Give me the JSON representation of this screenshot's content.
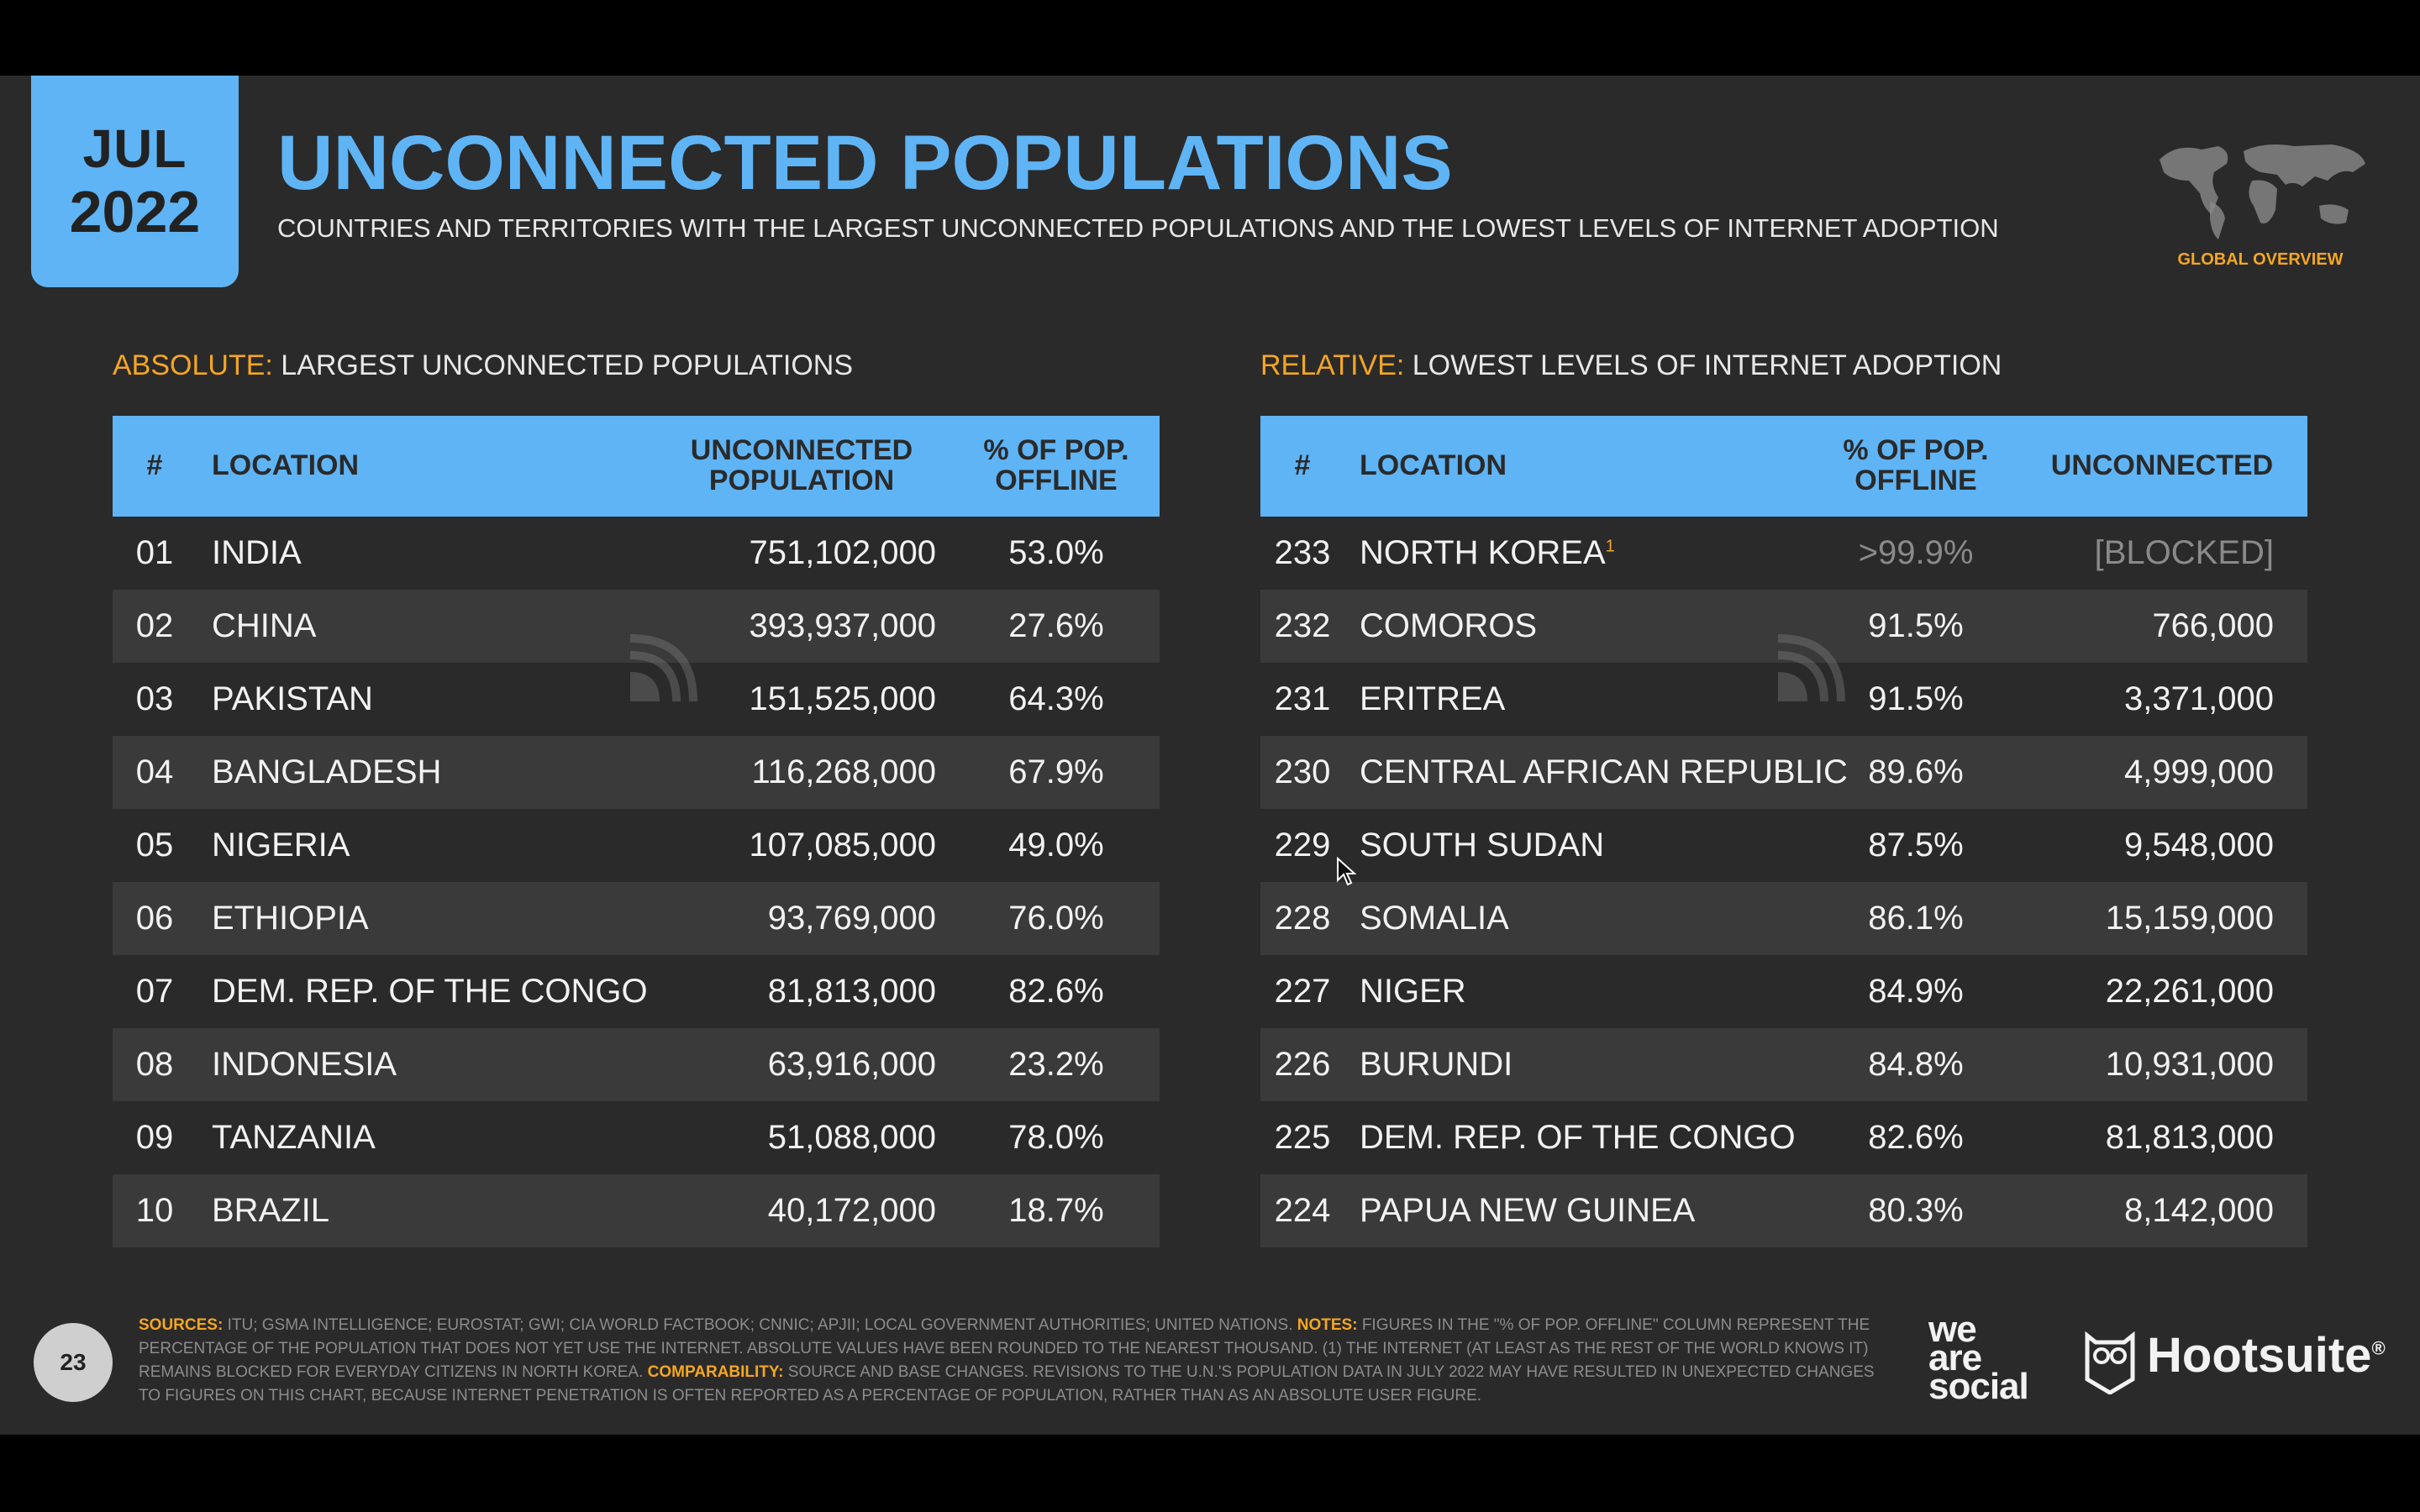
{
  "header": {
    "month": "JUL",
    "year": "2022",
    "title": "UNCONNECTED POPULATIONS",
    "subtitle": "COUNTRIES AND TERRITORIES WITH THE LARGEST UNCONNECTED POPULATIONS AND THE LOWEST LEVELS OF INTERNET ADOPTION",
    "badge": "GLOBAL OVERVIEW"
  },
  "absolute": {
    "label_highlight": "ABSOLUTE:",
    "label_rest": " LARGEST UNCONNECTED POPULATIONS",
    "headers": {
      "rank": "#",
      "location": "LOCATION",
      "col_a_line1": "UNCONNECTED",
      "col_a_line2": "POPULATION",
      "col_b_line1": "% OF POP.",
      "col_b_line2": "OFFLINE"
    },
    "rows": [
      {
        "rank": "01",
        "location": "INDIA",
        "unconnected": "751,102,000",
        "offline": "53.0%"
      },
      {
        "rank": "02",
        "location": "CHINA",
        "unconnected": "393,937,000",
        "offline": "27.6%"
      },
      {
        "rank": "03",
        "location": "PAKISTAN",
        "unconnected": "151,525,000",
        "offline": "64.3%"
      },
      {
        "rank": "04",
        "location": "BANGLADESH",
        "unconnected": "116,268,000",
        "offline": "67.9%"
      },
      {
        "rank": "05",
        "location": "NIGERIA",
        "unconnected": "107,085,000",
        "offline": "49.0%"
      },
      {
        "rank": "06",
        "location": "ETHIOPIA",
        "unconnected": "93,769,000",
        "offline": "76.0%"
      },
      {
        "rank": "07",
        "location": "DEM. REP. OF THE CONGO",
        "unconnected": "81,813,000",
        "offline": "82.6%"
      },
      {
        "rank": "08",
        "location": "INDONESIA",
        "unconnected": "63,916,000",
        "offline": "23.2%"
      },
      {
        "rank": "09",
        "location": "TANZANIA",
        "unconnected": "51,088,000",
        "offline": "78.0%"
      },
      {
        "rank": "10",
        "location": "BRAZIL",
        "unconnected": "40,172,000",
        "offline": "18.7%"
      }
    ]
  },
  "relative": {
    "label_highlight": "RELATIVE:",
    "label_rest": " LOWEST LEVELS OF INTERNET ADOPTION",
    "headers": {
      "rank": "#",
      "location": "LOCATION",
      "col_a_line1": "% OF POP.",
      "col_a_line2": "OFFLINE",
      "col_b": "UNCONNECTED"
    },
    "footnote_marker": "1",
    "rows": [
      {
        "rank": "233",
        "location": "NORTH KOREA",
        "offline": ">99.9%",
        "unconnected": "[BLOCKED]"
      },
      {
        "rank": "232",
        "location": "COMOROS",
        "offline": "91.5%",
        "unconnected": "766,000"
      },
      {
        "rank": "231",
        "location": "ERITREA",
        "offline": "91.5%",
        "unconnected": "3,371,000"
      },
      {
        "rank": "230",
        "location": "CENTRAL AFRICAN REPUBLIC",
        "offline": "89.6%",
        "unconnected": "4,999,000"
      },
      {
        "rank": "229",
        "location": "SOUTH SUDAN",
        "offline": "87.5%",
        "unconnected": "9,548,000"
      },
      {
        "rank": "228",
        "location": "SOMALIA",
        "offline": "86.1%",
        "unconnected": "15,159,000"
      },
      {
        "rank": "227",
        "location": "NIGER",
        "offline": "84.9%",
        "unconnected": "22,261,000"
      },
      {
        "rank": "226",
        "location": "BURUNDI",
        "offline": "84.8%",
        "unconnected": "10,931,000"
      },
      {
        "rank": "225",
        "location": "DEM. REP. OF THE CONGO",
        "offline": "82.6%",
        "unconnected": "81,813,000"
      },
      {
        "rank": "224",
        "location": "PAPUA NEW GUINEA",
        "offline": "80.3%",
        "unconnected": "8,142,000"
      }
    ]
  },
  "footer": {
    "page": "23",
    "sources_label": "SOURCES:",
    "sources_text": " ITU; GSMA INTELLIGENCE; EUROSTAT; GWI; CIA WORLD FACTBOOK; CNNIC; APJII; LOCAL GOVERNMENT AUTHORITIES; UNITED NATIONS. ",
    "notes_label": "NOTES:",
    "notes_text": " FIGURES IN THE \"% OF POP. OFFLINE\" COLUMN REPRESENT THE PERCENTAGE OF THE POPULATION THAT DOES NOT YET USE THE INTERNET. ABSOLUTE VALUES HAVE BEEN ROUNDED TO THE NEAREST THOUSAND. (1) THE INTERNET (AT LEAST AS THE REST OF THE WORLD KNOWS IT) REMAINS BLOCKED FOR EVERYDAY CITIZENS IN NORTH KOREA. ",
    "comparability_label": "COMPARABILITY:",
    "comparability_text": " SOURCE AND BASE CHANGES. REVISIONS TO THE U.N.'S POPULATION DATA IN JULY 2022 MAY HAVE RESULTED IN UNEXPECTED CHANGES TO FIGURES ON THIS CHART, BECAUSE INTERNET PENETRATION IS OFTEN REPORTED AS A PERCENTAGE OF POPULATION, RATHER THAN AS AN ABSOLUTE USER FIGURE.",
    "logo_was_1": "we",
    "logo_was_2": "are",
    "logo_was_3": "social",
    "logo_hootsuite": "Hootsuite",
    "logo_hootsuite_mark": "®"
  },
  "colors": {
    "accent": "#5fb4f5",
    "highlight": "#f5a623",
    "background": "#2a2a2a"
  },
  "icons": {
    "globe": "world-map-icon",
    "watermark": "datareportal-icon",
    "cursor": "mouse-cursor-icon",
    "hootsuite": "owl-icon"
  }
}
